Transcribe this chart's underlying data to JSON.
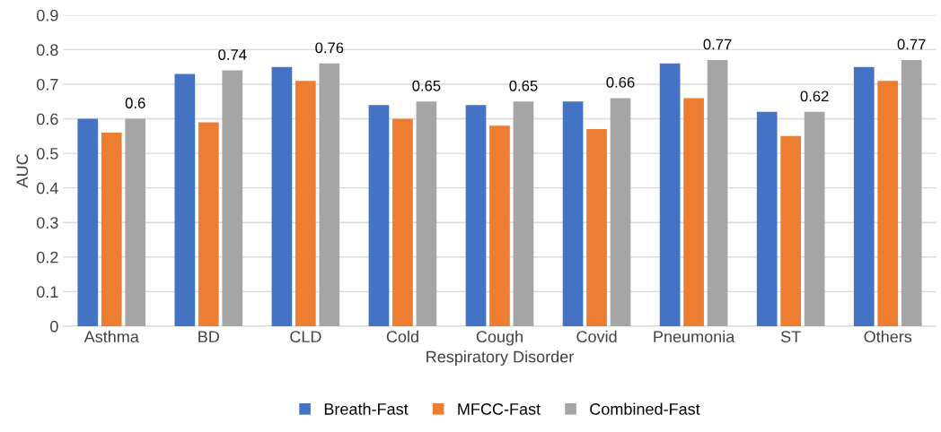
{
  "chart_data": {
    "type": "bar",
    "xlabel": "Respiratory Disorder",
    "ylabel": "AUC",
    "categories": [
      "Asthma",
      "BD",
      "CLD",
      "Cold",
      "Cough",
      "Covid",
      "Pneumonia",
      "ST",
      "Others"
    ],
    "series": [
      {
        "name": "Breath-Fast",
        "color": "#4472c4",
        "values": [
          0.6,
          0.73,
          0.75,
          0.64,
          0.64,
          0.65,
          0.76,
          0.62,
          0.75
        ]
      },
      {
        "name": "MFCC-Fast",
        "color": "#ed7d31",
        "values": [
          0.56,
          0.59,
          0.71,
          0.6,
          0.58,
          0.57,
          0.66,
          0.55,
          0.71
        ]
      },
      {
        "name": "Combined-Fast",
        "color": "#a5a5a5",
        "values": [
          0.6,
          0.74,
          0.76,
          0.65,
          0.65,
          0.66,
          0.77,
          0.62,
          0.77
        ],
        "value_labels": [
          "0.6",
          "0.74",
          "0.76",
          "0.65",
          "0.65",
          "0.66",
          "0.77",
          "0.62",
          "0.77"
        ]
      }
    ],
    "ylim": [
      0,
      0.9
    ],
    "yticks": [
      0,
      0.1,
      0.2,
      0.3,
      0.4,
      0.5,
      0.6,
      0.7,
      0.8,
      0.9
    ],
    "grid": "y",
    "legend": "bottom"
  }
}
